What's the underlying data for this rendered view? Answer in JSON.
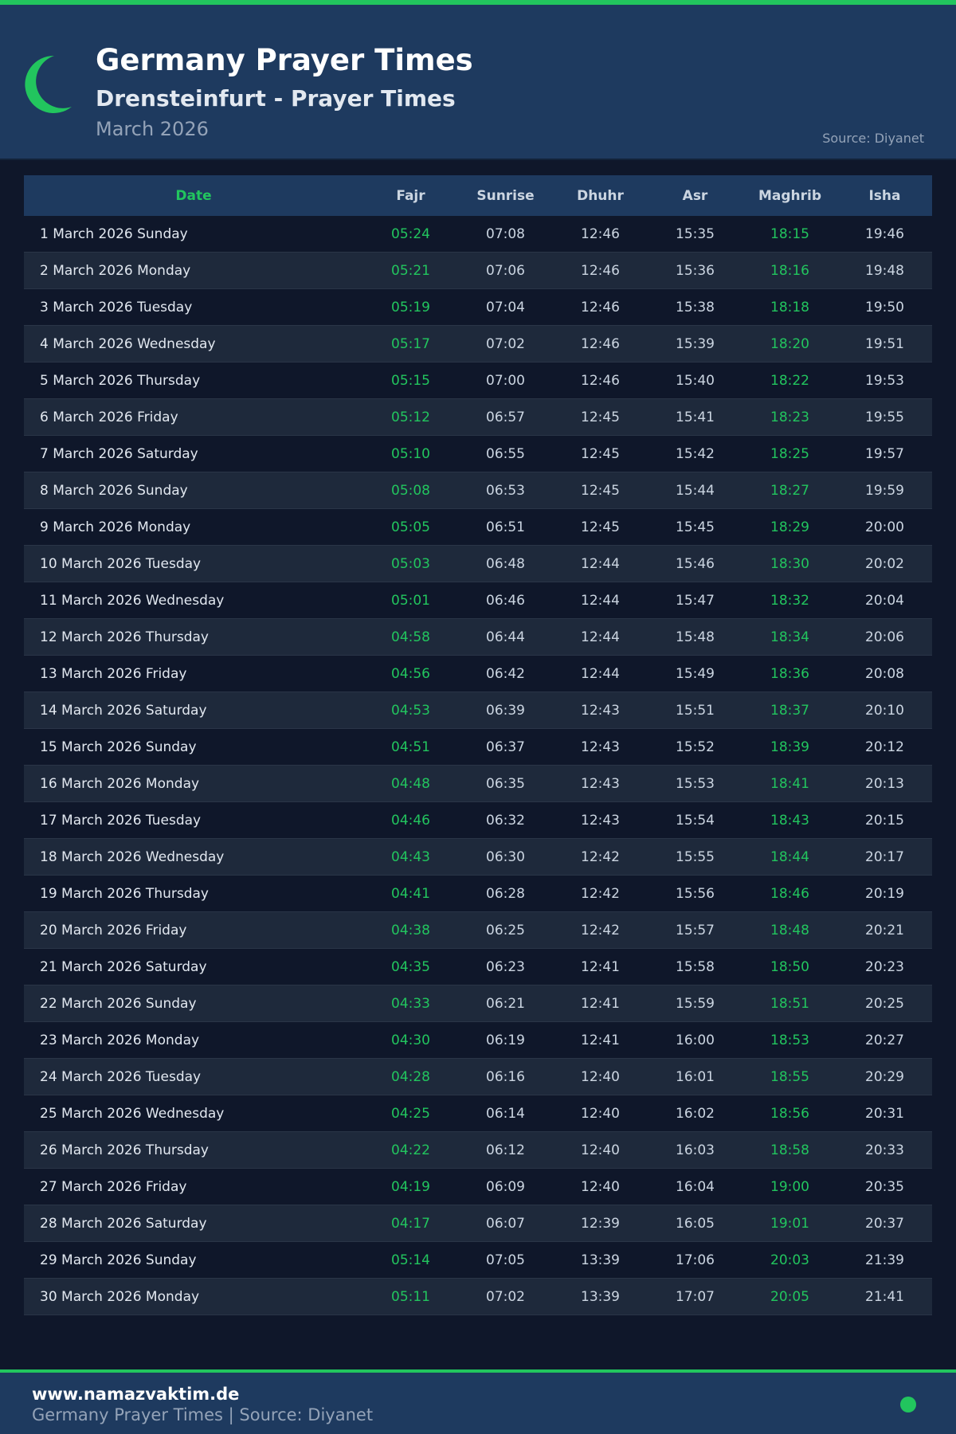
{
  "header": {
    "title": "Germany Prayer Times",
    "subtitle": "Drensteinfurt - Prayer Times",
    "month": "March 2026",
    "source": "Source: Diyanet",
    "icon": "crescent-moon-icon"
  },
  "colors": {
    "accent": "#22c55e",
    "header_bg": "#1e3a5f",
    "page_bg": "#0f172a",
    "alt_row_bg": "#1e293b"
  },
  "table": {
    "columns": [
      "Date",
      "Fajr",
      "Sunrise",
      "Dhuhr",
      "Asr",
      "Maghrib",
      "Isha"
    ],
    "rows": [
      [
        "1 March 2026 Sunday",
        "05:24",
        "07:08",
        "12:46",
        "15:35",
        "18:15",
        "19:46"
      ],
      [
        "2 March 2026 Monday",
        "05:21",
        "07:06",
        "12:46",
        "15:36",
        "18:16",
        "19:48"
      ],
      [
        "3 March 2026 Tuesday",
        "05:19",
        "07:04",
        "12:46",
        "15:38",
        "18:18",
        "19:50"
      ],
      [
        "4 March 2026 Wednesday",
        "05:17",
        "07:02",
        "12:46",
        "15:39",
        "18:20",
        "19:51"
      ],
      [
        "5 March 2026 Thursday",
        "05:15",
        "07:00",
        "12:46",
        "15:40",
        "18:22",
        "19:53"
      ],
      [
        "6 March 2026 Friday",
        "05:12",
        "06:57",
        "12:45",
        "15:41",
        "18:23",
        "19:55"
      ],
      [
        "7 March 2026 Saturday",
        "05:10",
        "06:55",
        "12:45",
        "15:42",
        "18:25",
        "19:57"
      ],
      [
        "8 March 2026 Sunday",
        "05:08",
        "06:53",
        "12:45",
        "15:44",
        "18:27",
        "19:59"
      ],
      [
        "9 March 2026 Monday",
        "05:05",
        "06:51",
        "12:45",
        "15:45",
        "18:29",
        "20:00"
      ],
      [
        "10 March 2026 Tuesday",
        "05:03",
        "06:48",
        "12:44",
        "15:46",
        "18:30",
        "20:02"
      ],
      [
        "11 March 2026 Wednesday",
        "05:01",
        "06:46",
        "12:44",
        "15:47",
        "18:32",
        "20:04"
      ],
      [
        "12 March 2026 Thursday",
        "04:58",
        "06:44",
        "12:44",
        "15:48",
        "18:34",
        "20:06"
      ],
      [
        "13 March 2026 Friday",
        "04:56",
        "06:42",
        "12:44",
        "15:49",
        "18:36",
        "20:08"
      ],
      [
        "14 March 2026 Saturday",
        "04:53",
        "06:39",
        "12:43",
        "15:51",
        "18:37",
        "20:10"
      ],
      [
        "15 March 2026 Sunday",
        "04:51",
        "06:37",
        "12:43",
        "15:52",
        "18:39",
        "20:12"
      ],
      [
        "16 March 2026 Monday",
        "04:48",
        "06:35",
        "12:43",
        "15:53",
        "18:41",
        "20:13"
      ],
      [
        "17 March 2026 Tuesday",
        "04:46",
        "06:32",
        "12:43",
        "15:54",
        "18:43",
        "20:15"
      ],
      [
        "18 March 2026 Wednesday",
        "04:43",
        "06:30",
        "12:42",
        "15:55",
        "18:44",
        "20:17"
      ],
      [
        "19 March 2026 Thursday",
        "04:41",
        "06:28",
        "12:42",
        "15:56",
        "18:46",
        "20:19"
      ],
      [
        "20 March 2026 Friday",
        "04:38",
        "06:25",
        "12:42",
        "15:57",
        "18:48",
        "20:21"
      ],
      [
        "21 March 2026 Saturday",
        "04:35",
        "06:23",
        "12:41",
        "15:58",
        "18:50",
        "20:23"
      ],
      [
        "22 March 2026 Sunday",
        "04:33",
        "06:21",
        "12:41",
        "15:59",
        "18:51",
        "20:25"
      ],
      [
        "23 March 2026 Monday",
        "04:30",
        "06:19",
        "12:41",
        "16:00",
        "18:53",
        "20:27"
      ],
      [
        "24 March 2026 Tuesday",
        "04:28",
        "06:16",
        "12:40",
        "16:01",
        "18:55",
        "20:29"
      ],
      [
        "25 March 2026 Wednesday",
        "04:25",
        "06:14",
        "12:40",
        "16:02",
        "18:56",
        "20:31"
      ],
      [
        "26 March 2026 Thursday",
        "04:22",
        "06:12",
        "12:40",
        "16:03",
        "18:58",
        "20:33"
      ],
      [
        "27 March 2026 Friday",
        "04:19",
        "06:09",
        "12:40",
        "16:04",
        "19:00",
        "20:35"
      ],
      [
        "28 March 2026 Saturday",
        "04:17",
        "06:07",
        "12:39",
        "16:05",
        "19:01",
        "20:37"
      ],
      [
        "29 March 2026 Sunday",
        "05:14",
        "07:05",
        "13:39",
        "17:06",
        "20:03",
        "21:39"
      ],
      [
        "30 March 2026 Monday",
        "05:11",
        "07:02",
        "13:39",
        "17:07",
        "20:05",
        "21:41"
      ]
    ]
  },
  "footer": {
    "site": "www.namazvaktim.de",
    "text": "Germany Prayer Times | Source: Diyanet"
  }
}
